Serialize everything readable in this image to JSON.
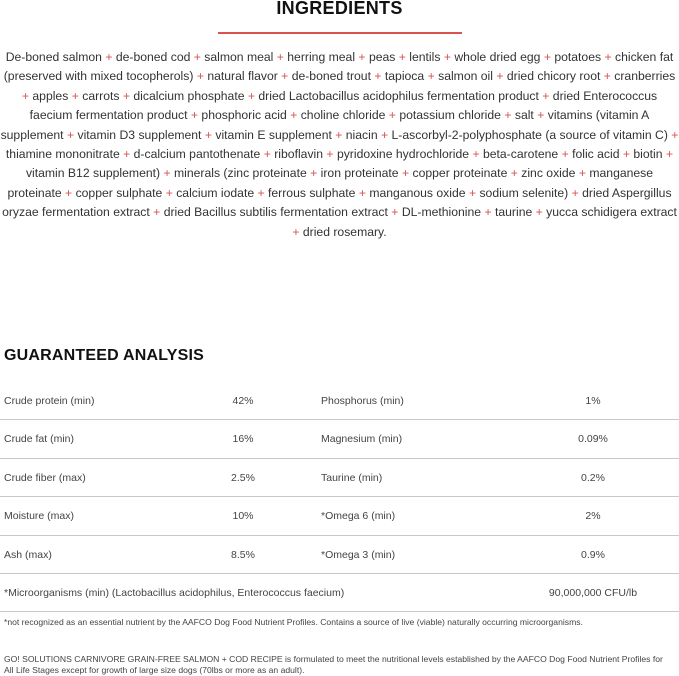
{
  "ingredients": {
    "title": "INGREDIENTS",
    "accent_color": "#d9534f",
    "items": [
      "De-boned salmon",
      "de-boned cod",
      "salmon meal",
      "herring meal",
      "peas",
      "lentils",
      "whole dried egg",
      "potatoes",
      "chicken fat (preserved with mixed tocopherols)",
      "natural flavor",
      "de-boned trout",
      "tapioca",
      "salmon oil",
      "dried chicory root",
      "cranberries",
      "apples",
      "carrots",
      "dicalcium phosphate",
      "dried Lactobacillus acidophilus fermentation product",
      "dried Enterococcus faecium fermentation product",
      "phosphoric acid",
      "choline chloride",
      "potassium chloride",
      "salt",
      "vitamins (vitamin A supplement",
      "vitamin D3 supplement",
      "vitamin E supplement",
      "niacin",
      "L-ascorbyl-2-polyphosphate (a source of vitamin C)",
      "thiamine mononitrate",
      "d-calcium pantothenate",
      "riboflavin",
      "pyridoxine hydrochloride",
      "beta-carotene",
      "folic acid",
      "biotin",
      "vitamin B12 supplement)",
      "minerals (zinc proteinate",
      "iron proteinate",
      "copper proteinate",
      "zinc oxide",
      "manganese proteinate",
      "copper sulphate",
      "calcium iodate",
      "ferrous sulphate",
      "manganous oxide",
      "sodium selenite)",
      "dried Aspergillus oryzae fermentation extract",
      "dried Bacillus subtilis fermentation extract",
      "DL-methionine",
      "taurine",
      "yucca schidigera extract",
      "dried rosemary."
    ],
    "separator": "+"
  },
  "analysis": {
    "title": "GUARANTEED ANALYSIS",
    "rows": [
      {
        "label1": "Crude protein (min)",
        "value1": "42%",
        "label2": "Phosphorus (min)",
        "value2": "1%"
      },
      {
        "label1": "Crude fat (min)",
        "value1": "16%",
        "label2": "Magnesium (min)",
        "value2": "0.09%"
      },
      {
        "label1": "Crude fiber (max)",
        "value1": "2.5%",
        "label2": "Taurine (min)",
        "value2": "0.2%"
      },
      {
        "label1": "Moisture (max)",
        "value1": "10%",
        "label2": "*Omega 6 (min)",
        "value2": "2%"
      },
      {
        "label1": "Ash (max)",
        "value1": "8.5%",
        "label2": "*Omega 3 (min)",
        "value2": "0.9%"
      }
    ],
    "micro": {
      "label": "*Microorganisms (min) (Lactobacillus acidophilus, Enterococcus faecium)",
      "value": "90,000,000 CFU/lb"
    },
    "footnote": "*not recognized as an essential nutrient by the AAFCO Dog Food Nutrient Profiles. Contains a source of live (viable) naturally occurring microorganisms.",
    "claim": "GO! SOLUTIONS CARNIVORE GRAIN-FREE SALMON + COD RECIPE  is formulated to meet the nutritional levels established by the AAFCO Dog Food Nutrient Profiles for All Life Stages except for growth of large size dogs (70lbs or more as an adult)."
  }
}
